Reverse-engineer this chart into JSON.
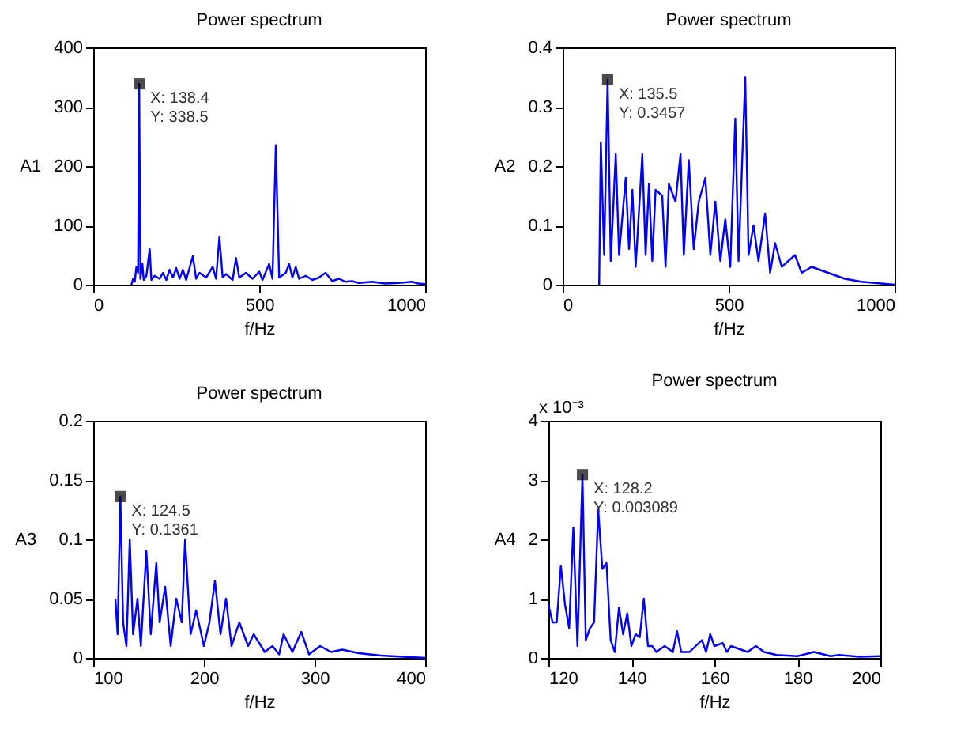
{
  "chart_data": [
    {
      "type": "line",
      "title": "Power spectrum",
      "xlabel": "f/Hz",
      "ylabel": "A1",
      "xlim": [
        0,
        1000
      ],
      "xticks": [
        0,
        500,
        1000
      ],
      "ylim": [
        0,
        400
      ],
      "yticks": [
        0,
        100,
        200,
        300,
        400
      ],
      "x": [
        115,
        120,
        125,
        130,
        135,
        138.4,
        142,
        148,
        152,
        160,
        170,
        175,
        185,
        200,
        210,
        220,
        230,
        240,
        250,
        260,
        270,
        280,
        300,
        310,
        320,
        340,
        360,
        370,
        380,
        390,
        400,
        420,
        430,
        440,
        460,
        480,
        500,
        510,
        530,
        540,
        550,
        560,
        580,
        590,
        600,
        610,
        620,
        640,
        660,
        680,
        700,
        720,
        740,
        760,
        780,
        800,
        840,
        880,
        920,
        960,
        980,
        1000
      ],
      "series": [
        {
          "color": "#0000ff",
          "values": [
            0,
            10,
            5,
            30,
            20,
            338.5,
            10,
            35,
            8,
            15,
            60,
            8,
            15,
            10,
            20,
            8,
            25,
            12,
            28,
            10,
            25,
            8,
            48,
            10,
            20,
            12,
            30,
            10,
            80,
            12,
            18,
            8,
            45,
            12,
            20,
            10,
            22,
            8,
            35,
            10,
            235,
            12,
            20,
            35,
            12,
            30,
            10,
            15,
            8,
            12,
            20,
            6,
            10,
            5,
            6,
            3,
            5,
            2,
            3,
            5,
            2,
            1
          ]
        }
      ],
      "annotations": [
        {
          "text": "X: 138.4\nY: 338.5",
          "x": 138.4,
          "y": 338.5
        }
      ]
    },
    {
      "type": "line",
      "title": "Power spectrum",
      "xlabel": "f/Hz",
      "ylabel": "A2",
      "xlim": [
        0,
        1000
      ],
      "xticks": [
        0,
        500,
        1000
      ],
      "ylim": [
        0,
        0.4
      ],
      "yticks": [
        0,
        0.1,
        0.2,
        0.3,
        0.4
      ],
      "x": [
        110,
        115,
        125,
        135.5,
        145,
        160,
        170,
        190,
        200,
        210,
        220,
        240,
        250,
        260,
        270,
        280,
        300,
        310,
        320,
        340,
        355,
        365,
        380,
        395,
        410,
        430,
        445,
        460,
        475,
        490,
        505,
        520,
        530,
        550,
        560,
        575,
        590,
        610,
        625,
        640,
        660,
        680,
        700,
        720,
        750,
        800,
        850,
        900,
        1000
      ],
      "series": [
        {
          "color": "#0000ff",
          "values": [
            0,
            0.24,
            0.05,
            0.3457,
            0.04,
            0.22,
            0.05,
            0.18,
            0.06,
            0.16,
            0.03,
            0.22,
            0.05,
            0.17,
            0.04,
            0.16,
            0.15,
            0.03,
            0.17,
            0.14,
            0.22,
            0.05,
            0.21,
            0.06,
            0.14,
            0.18,
            0.05,
            0.14,
            0.04,
            0.11,
            0.03,
            0.28,
            0.04,
            0.35,
            0.05,
            0.1,
            0.04,
            0.12,
            0.02,
            0.07,
            0.03,
            0.04,
            0.05,
            0.02,
            0.03,
            0.02,
            0.01,
            0.005,
            0
          ]
        }
      ],
      "annotations": [
        {
          "text": "X: 135.5\nY: 0.3457",
          "x": 135.5,
          "y": 0.3457
        }
      ]
    },
    {
      "type": "line",
      "title": "Power spectrum",
      "xlabel": "f/Hz",
      "ylabel": "A3",
      "xlim": [
        100,
        400
      ],
      "xticks": [
        100,
        200,
        300,
        400
      ],
      "ylim": [
        0,
        0.2
      ],
      "yticks": [
        0,
        0.05,
        0.1,
        0.15,
        0.2
      ],
      "x": [
        120,
        122,
        124.5,
        127,
        130,
        133,
        136,
        140,
        143,
        148,
        152,
        157,
        160,
        165,
        170,
        175,
        180,
        183,
        188,
        193,
        200,
        205,
        210,
        215,
        220,
        225,
        232,
        240,
        245,
        255,
        262,
        268,
        272,
        280,
        288,
        295,
        305,
        315,
        325,
        340,
        360,
        380,
        400
      ],
      "series": [
        {
          "color": "#0000ff",
          "values": [
            0.05,
            0.02,
            0.1361,
            0.03,
            0.01,
            0.1,
            0.02,
            0.05,
            0.01,
            0.09,
            0.02,
            0.08,
            0.03,
            0.06,
            0.01,
            0.05,
            0.03,
            0.1,
            0.02,
            0.04,
            0.01,
            0.03,
            0.065,
            0.02,
            0.05,
            0.01,
            0.03,
            0.01,
            0.02,
            0.005,
            0.01,
            0.003,
            0.02,
            0.005,
            0.022,
            0.003,
            0.01,
            0.005,
            0.007,
            0.004,
            0.002,
            0.001,
            0
          ]
        }
      ],
      "annotations": [
        {
          "text": "X: 124.5\nY: 0.1361",
          "x": 124.5,
          "y": 0.1361
        }
      ]
    },
    {
      "type": "line",
      "title": "Power spectrum",
      "xlabel": "f/Hz",
      "ylabel": "A4",
      "xlim": [
        120,
        200
      ],
      "xticks": [
        120,
        140,
        160,
        180,
        200
      ],
      "ylim": [
        0,
        4
      ],
      "yticks": [
        0,
        1,
        2,
        3,
        4
      ],
      "x": [
        120,
        121,
        122,
        123,
        124,
        125,
        126,
        127,
        128.2,
        129,
        130,
        131,
        132,
        133,
        134,
        135,
        136,
        137,
        138,
        139,
        140,
        141,
        142,
        143,
        144,
        145,
        146,
        148,
        150,
        151,
        152,
        154,
        157,
        158,
        159,
        160,
        162,
        163,
        164,
        166,
        168,
        170,
        172,
        175,
        180,
        184,
        188,
        190,
        195,
        200
      ],
      "series": [
        {
          "color": "#0000ff",
          "values": [
            0.9,
            0.6,
            0.6,
            1.55,
            0.9,
            0.5,
            2.2,
            0.2,
            3.09,
            0.3,
            0.5,
            0.6,
            2.5,
            1.5,
            1.6,
            0.3,
            0.1,
            0.85,
            0.4,
            0.75,
            0.2,
            0.4,
            0.35,
            1.0,
            0.2,
            0.2,
            0.1,
            0.2,
            0.1,
            0.45,
            0.1,
            0.1,
            0.3,
            0.1,
            0.4,
            0.2,
            0.25,
            0.1,
            0.2,
            0.15,
            0.1,
            0.2,
            0.1,
            0.05,
            0.03,
            0.1,
            0.03,
            0.05,
            0.02,
            0.03
          ]
        }
      ],
      "annotations": [
        "x 10⁻³",
        {
          "text": "X: 128.2\nY: 0.003089",
          "x": 128.2,
          "y": 3.09
        }
      ]
    }
  ]
}
